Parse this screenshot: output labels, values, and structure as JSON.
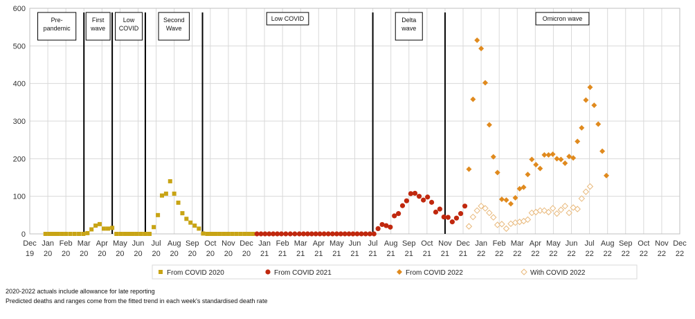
{
  "chart_data": {
    "type": "scatter",
    "title": "",
    "xlabel": "",
    "ylabel": "",
    "ylim": [
      0,
      600
    ],
    "yticks": [
      0,
      100,
      200,
      300,
      400,
      500,
      600
    ],
    "grid": true,
    "legend_position": "bottom",
    "x_range": [
      "2019-12",
      "2022-12"
    ],
    "x_ticks": [
      {
        "m": "Dec",
        "y": "19"
      },
      {
        "m": "Jan",
        "y": "20"
      },
      {
        "m": "Feb",
        "y": "20"
      },
      {
        "m": "Mar",
        "y": "20"
      },
      {
        "m": "Apr",
        "y": "20"
      },
      {
        "m": "May",
        "y": "20"
      },
      {
        "m": "Jun",
        "y": "20"
      },
      {
        "m": "Jul",
        "y": "20"
      },
      {
        "m": "Aug",
        "y": "20"
      },
      {
        "m": "Sep",
        "y": "20"
      },
      {
        "m": "Oct",
        "y": "20"
      },
      {
        "m": "Nov",
        "y": "20"
      },
      {
        "m": "Dec",
        "y": "20"
      },
      {
        "m": "Jan",
        "y": "21"
      },
      {
        "m": "Feb",
        "y": "21"
      },
      {
        "m": "Mar",
        "y": "21"
      },
      {
        "m": "Apr",
        "y": "21"
      },
      {
        "m": "May",
        "y": "21"
      },
      {
        "m": "Jun",
        "y": "21"
      },
      {
        "m": "Jul",
        "y": "21"
      },
      {
        "m": "Aug",
        "y": "21"
      },
      {
        "m": "Sep",
        "y": "21"
      },
      {
        "m": "Oct",
        "y": "21"
      },
      {
        "m": "Nov",
        "y": "21"
      },
      {
        "m": "Dec",
        "y": "21"
      },
      {
        "m": "Jan",
        "y": "22"
      },
      {
        "m": "Feb",
        "y": "22"
      },
      {
        "m": "Mar",
        "y": "22"
      },
      {
        "m": "Apr",
        "y": "22"
      },
      {
        "m": "May",
        "y": "22"
      },
      {
        "m": "Jun",
        "y": "22"
      },
      {
        "m": "Jul",
        "y": "22"
      },
      {
        "m": "Aug",
        "y": "22"
      },
      {
        "m": "Sep",
        "y": "22"
      },
      {
        "m": "Oct",
        "y": "22"
      },
      {
        "m": "Nov",
        "y": "22"
      },
      {
        "m": "Dec",
        "y": "22"
      }
    ],
    "phases": [
      {
        "start": "2019-12",
        "end": "2020-03-01",
        "label": [
          "Pre-",
          "pandemic"
        ]
      },
      {
        "start": "2020-03-01",
        "end": "2020-04-18",
        "label": [
          "First",
          "wave"
        ]
      },
      {
        "start": "2020-04-18",
        "end": "2020-06-13",
        "label": [
          "Low",
          "COVID"
        ]
      },
      {
        "start": "2020-06-13",
        "end": "2020-09-18",
        "label": [
          "Second",
          "Wave"
        ]
      },
      {
        "start": "2020-09-18",
        "end": "2021-07-01",
        "label": [
          "Low COVID"
        ]
      },
      {
        "start": "2021-07-01",
        "end": "2021-11-01",
        "label": [
          "Delta",
          "wave"
        ]
      },
      {
        "start": "2021-11-01",
        "end": "2022-12",
        "label": [
          "Omicron wave"
        ]
      }
    ],
    "series": [
      {
        "name": "From COVID 2020",
        "marker": "square",
        "color": "#c8a415",
        "points": [
          [
            "2019-12-28",
            0
          ],
          [
            "2020-01-04",
            0
          ],
          [
            "2020-01-11",
            0
          ],
          [
            "2020-01-18",
            0
          ],
          [
            "2020-01-25",
            0
          ],
          [
            "2020-02-01",
            0
          ],
          [
            "2020-02-08",
            0
          ],
          [
            "2020-02-15",
            0
          ],
          [
            "2020-02-22",
            0
          ],
          [
            "2020-02-29",
            0
          ],
          [
            "2020-03-07",
            2
          ],
          [
            "2020-03-14",
            12
          ],
          [
            "2020-03-21",
            22
          ],
          [
            "2020-03-28",
            26
          ],
          [
            "2020-04-04",
            14
          ],
          [
            "2020-04-11",
            14
          ],
          [
            "2020-04-18",
            16
          ],
          [
            "2020-04-25",
            0
          ],
          [
            "2020-05-02",
            0
          ],
          [
            "2020-05-09",
            0
          ],
          [
            "2020-05-16",
            0
          ],
          [
            "2020-05-23",
            0
          ],
          [
            "2020-05-30",
            0
          ],
          [
            "2020-06-06",
            0
          ],
          [
            "2020-06-13",
            0
          ],
          [
            "2020-06-20",
            0
          ],
          [
            "2020-06-27",
            18
          ],
          [
            "2020-07-04",
            50
          ],
          [
            "2020-07-11",
            102
          ],
          [
            "2020-07-18",
            107
          ],
          [
            "2020-07-25",
            140
          ],
          [
            "2020-08-01",
            107
          ],
          [
            "2020-08-08",
            83
          ],
          [
            "2020-08-15",
            55
          ],
          [
            "2020-08-22",
            40
          ],
          [
            "2020-08-29",
            30
          ],
          [
            "2020-09-05",
            22
          ],
          [
            "2020-09-12",
            14
          ],
          [
            "2020-09-19",
            1
          ],
          [
            "2020-09-26",
            0
          ],
          [
            "2020-10-03",
            0
          ],
          [
            "2020-10-10",
            0
          ],
          [
            "2020-10-17",
            0
          ],
          [
            "2020-10-24",
            0
          ],
          [
            "2020-10-31",
            0
          ],
          [
            "2020-11-07",
            0
          ],
          [
            "2020-11-14",
            0
          ],
          [
            "2020-11-21",
            0
          ],
          [
            "2020-11-28",
            0
          ],
          [
            "2020-12-05",
            0
          ],
          [
            "2020-12-12",
            0
          ]
        ]
      },
      {
        "name": "From COVID 2021",
        "marker": "circle",
        "color": "#c0280e",
        "points": [
          [
            "2020-12-19",
            0
          ],
          [
            "2020-12-26",
            0
          ],
          [
            "2021-01-02",
            0
          ],
          [
            "2021-01-09",
            0
          ],
          [
            "2021-01-16",
            0
          ],
          [
            "2021-01-23",
            0
          ],
          [
            "2021-01-30",
            0
          ],
          [
            "2021-02-06",
            0
          ],
          [
            "2021-02-13",
            0
          ],
          [
            "2021-02-20",
            0
          ],
          [
            "2021-02-27",
            0
          ],
          [
            "2021-03-06",
            0
          ],
          [
            "2021-03-13",
            0
          ],
          [
            "2021-03-20",
            0
          ],
          [
            "2021-03-27",
            0
          ],
          [
            "2021-04-03",
            0
          ],
          [
            "2021-04-10",
            0
          ],
          [
            "2021-04-17",
            0
          ],
          [
            "2021-04-24",
            0
          ],
          [
            "2021-05-01",
            0
          ],
          [
            "2021-05-08",
            0
          ],
          [
            "2021-05-15",
            0
          ],
          [
            "2021-05-22",
            0
          ],
          [
            "2021-05-29",
            0
          ],
          [
            "2021-06-05",
            0
          ],
          [
            "2021-06-12",
            0
          ],
          [
            "2021-06-19",
            0
          ],
          [
            "2021-06-26",
            0
          ],
          [
            "2021-07-03",
            0
          ],
          [
            "2021-07-10",
            14
          ],
          [
            "2021-07-17",
            25
          ],
          [
            "2021-07-24",
            22
          ],
          [
            "2021-07-31",
            18
          ],
          [
            "2021-08-07",
            48
          ],
          [
            "2021-08-14",
            54
          ],
          [
            "2021-08-21",
            75
          ],
          [
            "2021-08-28",
            88
          ],
          [
            "2021-09-04",
            107
          ],
          [
            "2021-09-11",
            108
          ],
          [
            "2021-09-18",
            100
          ],
          [
            "2021-09-25",
            90
          ],
          [
            "2021-10-02",
            98
          ],
          [
            "2021-10-09",
            84
          ],
          [
            "2021-10-16",
            58
          ],
          [
            "2021-10-23",
            66
          ],
          [
            "2021-10-30",
            45
          ],
          [
            "2021-11-06",
            44
          ],
          [
            "2021-11-13",
            32
          ],
          [
            "2021-11-20",
            42
          ],
          [
            "2021-11-27",
            54
          ],
          [
            "2021-12-04",
            74
          ]
        ]
      },
      {
        "name": "From COVID 2022",
        "marker": "diamond",
        "color": "#e08a1e",
        "points": [
          [
            "2021-12-11",
            172
          ],
          [
            "2021-12-18",
            358
          ],
          [
            "2021-12-25",
            515
          ],
          [
            "2022-01-01",
            493
          ],
          [
            "2022-01-08",
            402
          ],
          [
            "2022-01-15",
            290
          ],
          [
            "2022-01-22",
            205
          ],
          [
            "2022-01-29",
            163
          ],
          [
            "2022-02-05",
            92
          ],
          [
            "2022-02-12",
            90
          ],
          [
            "2022-02-19",
            80
          ],
          [
            "2022-02-26",
            96
          ],
          [
            "2022-03-05",
            120
          ],
          [
            "2022-03-12",
            124
          ],
          [
            "2022-03-19",
            158
          ],
          [
            "2022-03-26",
            198
          ],
          [
            "2022-04-02",
            184
          ],
          [
            "2022-04-09",
            174
          ],
          [
            "2022-04-16",
            210
          ],
          [
            "2022-04-23",
            210
          ],
          [
            "2022-04-30",
            212
          ],
          [
            "2022-05-07",
            200
          ],
          [
            "2022-05-14",
            198
          ],
          [
            "2022-05-21",
            188
          ],
          [
            "2022-05-28",
            206
          ],
          [
            "2022-06-04",
            202
          ],
          [
            "2022-06-11",
            246
          ],
          [
            "2022-06-18",
            282
          ],
          [
            "2022-06-25",
            356
          ],
          [
            "2022-07-02",
            390
          ],
          [
            "2022-07-09",
            342
          ],
          [
            "2022-07-16",
            292
          ],
          [
            "2022-07-23",
            220
          ],
          [
            "2022-07-30",
            155
          ]
        ]
      },
      {
        "name": "With COVID 2022",
        "marker": "diamond-open",
        "color": "#e8b87a",
        "points": [
          [
            "2021-12-11",
            20
          ],
          [
            "2021-12-18",
            45
          ],
          [
            "2021-12-25",
            62
          ],
          [
            "2022-01-01",
            74
          ],
          [
            "2022-01-08",
            68
          ],
          [
            "2022-01-15",
            56
          ],
          [
            "2022-01-22",
            44
          ],
          [
            "2022-01-29",
            24
          ],
          [
            "2022-02-05",
            26
          ],
          [
            "2022-02-12",
            14
          ],
          [
            "2022-02-19",
            27
          ],
          [
            "2022-02-26",
            30
          ],
          [
            "2022-03-05",
            32
          ],
          [
            "2022-03-12",
            34
          ],
          [
            "2022-03-19",
            38
          ],
          [
            "2022-03-26",
            56
          ],
          [
            "2022-04-02",
            58
          ],
          [
            "2022-04-09",
            62
          ],
          [
            "2022-04-16",
            62
          ],
          [
            "2022-04-23",
            58
          ],
          [
            "2022-04-30",
            68
          ],
          [
            "2022-05-07",
            54
          ],
          [
            "2022-05-14",
            64
          ],
          [
            "2022-05-21",
            74
          ],
          [
            "2022-05-28",
            56
          ],
          [
            "2022-06-04",
            70
          ],
          [
            "2022-06-11",
            66
          ],
          [
            "2022-06-18",
            94
          ],
          [
            "2022-06-25",
            112
          ],
          [
            "2022-07-02",
            126
          ]
        ]
      }
    ],
    "footnotes": [
      "2020-2022  actuals include allowance for late reporting",
      "Predicted deaths and ranges come from the fitted trend in each week's standardised death rate"
    ]
  }
}
